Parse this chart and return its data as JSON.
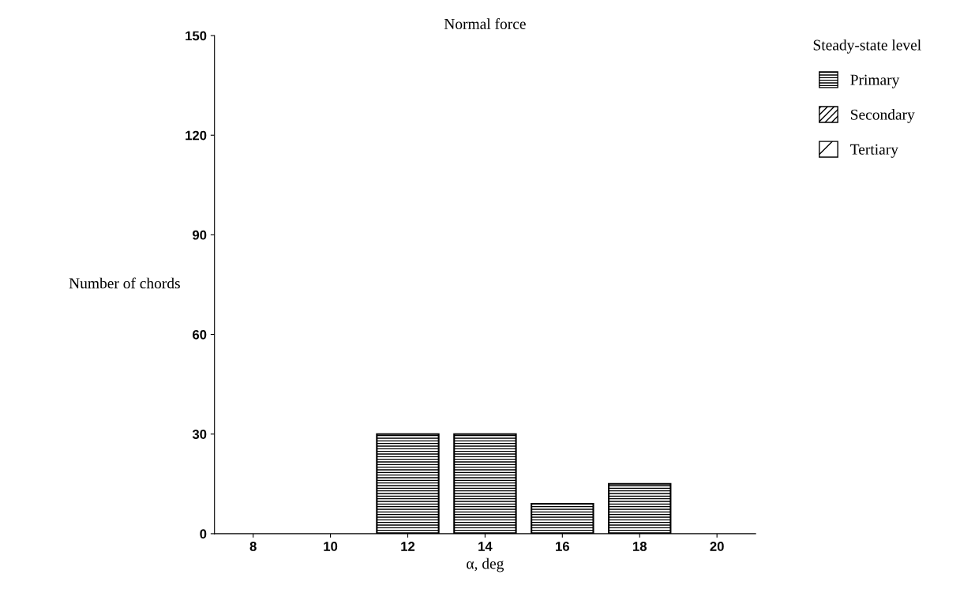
{
  "chart_data": {
    "type": "bar",
    "title": "Normal force",
    "xlabel": "α, deg",
    "ylabel": "Number of chords",
    "legend_title": "Steady-state level",
    "categories": [
      "8",
      "10",
      "12",
      "14",
      "16",
      "18",
      "20"
    ],
    "series": [
      {
        "name": "Primary",
        "color": "#000000",
        "values": [
          null,
          null,
          30,
          30,
          9,
          15,
          null
        ]
      },
      {
        "name": "Secondary",
        "color": "#000000",
        "values": [
          null,
          null,
          null,
          null,
          null,
          null,
          null
        ]
      },
      {
        "name": "Tertiary",
        "color": "#000000",
        "values": [
          null,
          null,
          null,
          null,
          null,
          null,
          null
        ]
      }
    ],
    "ylim": [
      0,
      150
    ],
    "yticks": [
      0,
      30,
      60,
      90,
      120,
      150
    ],
    "grid": false,
    "legend": "right"
  }
}
